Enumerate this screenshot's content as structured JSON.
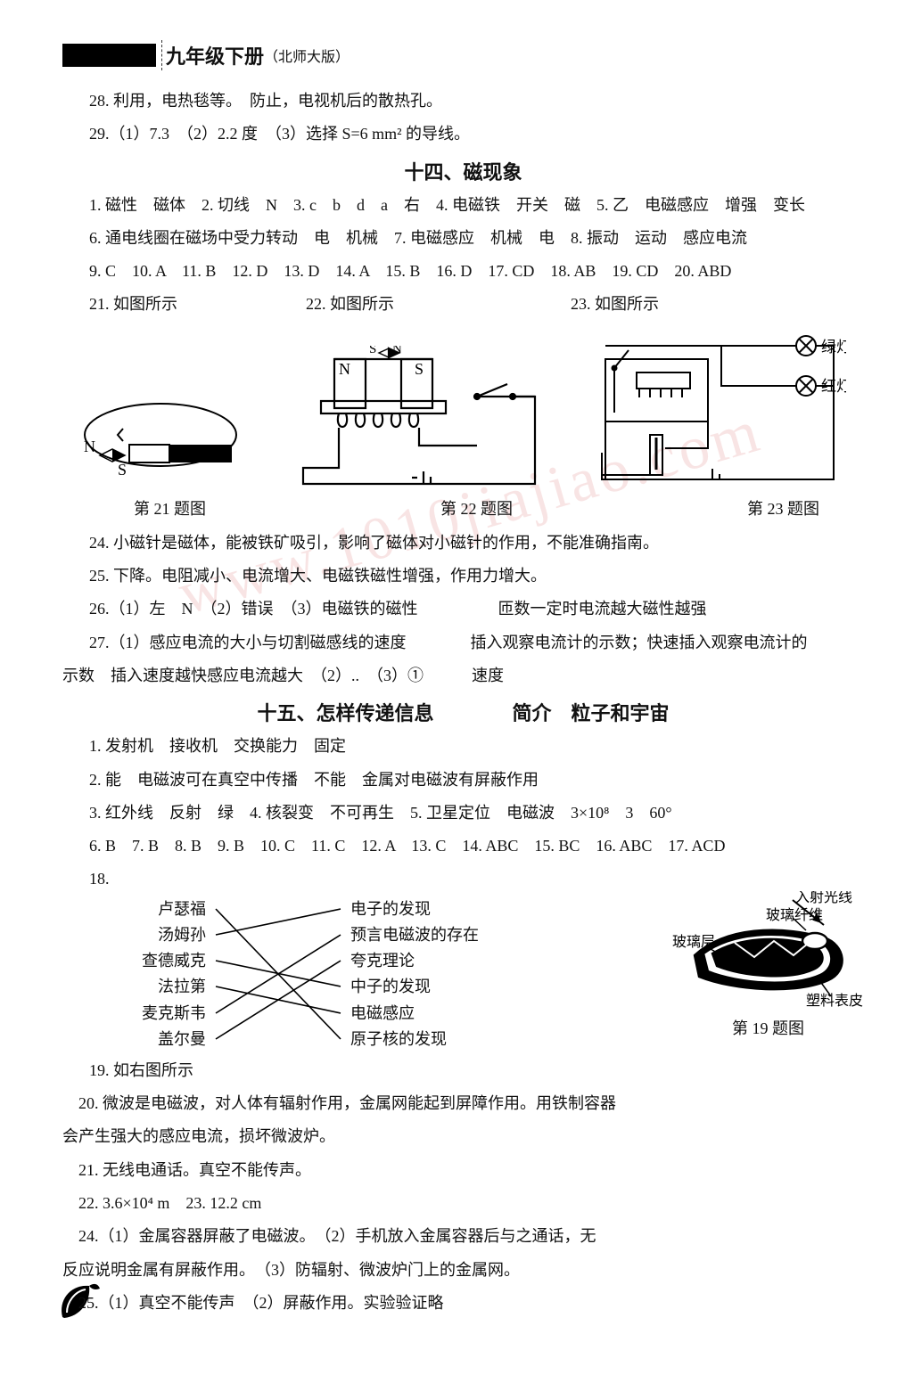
{
  "header": {
    "title": "九年级下册",
    "subtitle": "（北师大版）"
  },
  "intro": {
    "line28": "28. 利用，电热毯等。　防止，电视机后的散热孔。",
    "line29": "29.（1）7.3　（2）2.2 度　（3）选择 S=6 mm² 的导线。"
  },
  "section14": {
    "title": "十四、磁现象",
    "l1": "1. 磁性　磁体　2. 切线　N　3. c　b　d　a　右　4. 电磁铁　开关　磁　5. 乙　电磁感应　增强　变长",
    "l2": "6. 通电线圈在磁场中受力转动　电　机械　7. 电磁感应　机械　电　8. 振动　运动　感应电流",
    "l3": "9. C　10. A　11. B　12. D　13. D　14. A　15. B　16. D　17. CD　18. AB　19. CD　20. ABD",
    "l4": "21. 如图所示　　　　　　　　22. 如图所示　　　　　　　　　　　23. 如图所示",
    "figcap1": "第 21 题图",
    "figcap2": "第 22 题图",
    "figcap3": "第 23 题图",
    "l24": "24. 小磁针是磁体，能被铁矿吸引，影响了磁体对小磁针的作用，不能准确指南。",
    "l25": "25. 下降。电阻减小、电流增大、电磁铁磁性增强，作用力增大。",
    "l26": "26.（1）左　N　（2）错误　（3）电磁铁的磁性　　　　　匝数一定时电流越大磁性越强",
    "l27a": "27.（1）感应电流的大小与切割磁感线的速度　　　　插入观察电流计的示数；快速插入观察电流计的",
    "l27b": "示数　插入速度越快感应电流越大　（2）..　（3）①　　　速度"
  },
  "section15": {
    "title": "十五、怎样传递信息　　　　简介　粒子和宇宙",
    "l1": "1. 发射机　接收机　交换能力　固定",
    "l2": "2. 能　电磁波可在真空中传播　不能　金属对电磁波有屏蔽作用",
    "l3": "3. 红外线　反射　绿　4. 核裂变　不可再生　5. 卫星定位　电磁波　3×10⁸　3　60°",
    "l4": "6. B　7. B　8. B　9. B　10. C　11. C　12. A　13. C　14. ABC　15. BC　16. ABC　17. ACD",
    "l18": "18. 卢瑟福",
    "match_left": [
      "卢瑟福",
      "汤姆孙",
      "查德威克",
      "法拉第",
      "麦克斯韦",
      "盖尔曼"
    ],
    "match_right": [
      "电子的发现",
      "预言电磁波的存在",
      "夸克理论",
      "中子的发现",
      "电磁感应",
      "原子核的发现"
    ],
    "l19": "19. 如右图所示",
    "l20a": "　20. 微波是电磁波，对人体有辐射作用，金属网能起到屏障作用。用铁制容器",
    "l20b": "会产生强大的感应电流，损坏微波炉。",
    "l21": "　21. 无线电通话。真空不能传声。",
    "l22": "　22. 3.6×10⁴ m　23. 12.2 cm",
    "l24a": "　24.（1）金属容器屏蔽了电磁波。　（2）手机放入金属容器后与之通话，无",
    "l24b": "反应说明金属有屏蔽作用。　（3）防辐射、微波炉门上的金属网。",
    "l25": "　25.（1）真空不能传声　（2）屏蔽作用。实验验证略"
  },
  "fig23": {
    "green": "绿灯",
    "red": "红灯"
  },
  "fig19": {
    "a": "入射光线",
    "b": "玻璃纤维",
    "c": "玻璃层",
    "d": "塑料表皮",
    "cap": "第 19 题图"
  },
  "watermark": "www.1010jiajiao.com",
  "colors": {
    "stroke": "#000000",
    "wm": "#f0c5c5"
  }
}
